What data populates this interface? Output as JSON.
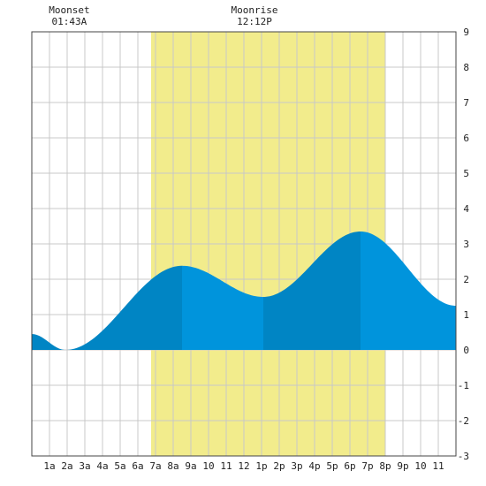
{
  "chart_data": {
    "type": "area",
    "title": "",
    "xlabel": "",
    "ylabel": "",
    "xlim": [
      0,
      24
    ],
    "ylim": [
      -3,
      9
    ],
    "y_ticks": [
      9,
      8,
      7,
      6,
      5,
      4,
      3,
      2,
      1,
      0,
      -1,
      -2,
      -3
    ],
    "x_tick_labels": [
      "1a",
      "2a",
      "3a",
      "4a",
      "5a",
      "6a",
      "7a",
      "8a",
      "9a",
      "10",
      "11",
      "12",
      "1p",
      "2p",
      "3p",
      "4p",
      "5p",
      "6p",
      "7p",
      "8p",
      "9p",
      "10",
      "11"
    ],
    "grid": true,
    "daylight": {
      "start_hour": 6.75,
      "end_hour": 20.0
    },
    "moon_events": [
      {
        "label": "Moonset",
        "time": "01:43A",
        "hour": 1.72
      },
      {
        "label": "Moonrise",
        "time": "12:12P",
        "hour": 12.2
      }
    ],
    "tide_extremes": [
      {
        "hour": 0.0,
        "value": 0.45
      },
      {
        "hour": 1.9,
        "value": 0.0
      },
      {
        "hour": 8.5,
        "value": 2.38
      },
      {
        "hour": 13.1,
        "value": 1.5
      },
      {
        "hour": 18.6,
        "value": 3.35
      },
      {
        "hour": 24.0,
        "value": 1.25
      }
    ],
    "tide_bands": [
      {
        "start": 0.0,
        "end": 8.5,
        "color": "#0085c4"
      },
      {
        "start": 8.5,
        "end": 13.1,
        "color": "#0094dc"
      },
      {
        "start": 13.1,
        "end": 18.6,
        "color": "#0085c4"
      },
      {
        "start": 18.6,
        "end": 24.0,
        "color": "#0094dc"
      }
    ],
    "colors": {
      "daylight": "#f2ec8c",
      "grid": "#c8c8c8",
      "border": "#444444"
    }
  }
}
